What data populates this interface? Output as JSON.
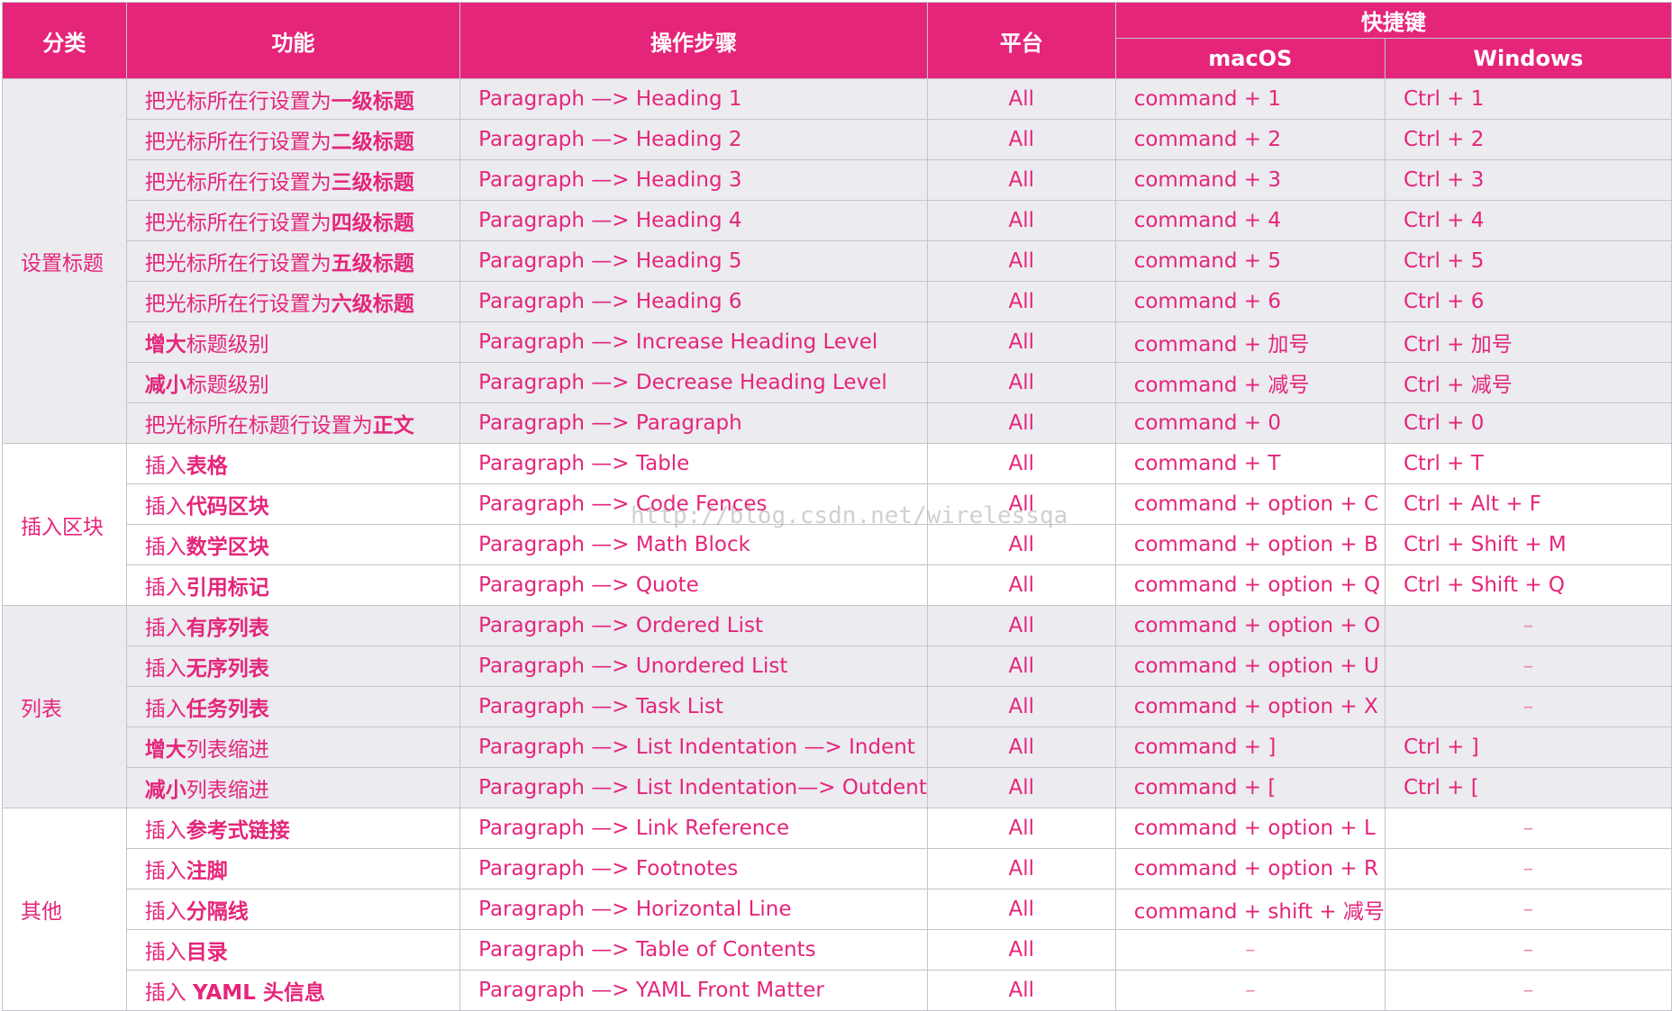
{
  "headers": {
    "category": "分类",
    "function": "功能",
    "steps": "操作步骤",
    "platform": "平台",
    "shortcut": "快捷键",
    "macos": "macOS",
    "windows": "Windows"
  },
  "watermark": "http://blog.csdn.net/wirelessqa",
  "groups": [
    {
      "category": "设置标题",
      "rows": [
        {
          "f_pre": "把光标所在行设置为",
          "f_bold": "一级标题",
          "f_post": "",
          "steps": "Paragraph —> Heading 1",
          "platform": "All",
          "mac": "command + 1",
          "win": "Ctrl + 1"
        },
        {
          "f_pre": "把光标所在行设置为",
          "f_bold": "二级标题",
          "f_post": "",
          "steps": "Paragraph —> Heading 2",
          "platform": "All",
          "mac": "command + 2",
          "win": "Ctrl + 2"
        },
        {
          "f_pre": "把光标所在行设置为",
          "f_bold": "三级标题",
          "f_post": "",
          "steps": "Paragraph —> Heading 3",
          "platform": "All",
          "mac": "command + 3",
          "win": "Ctrl + 3"
        },
        {
          "f_pre": "把光标所在行设置为",
          "f_bold": "四级标题",
          "f_post": "",
          "steps": "Paragraph —> Heading 4",
          "platform": "All",
          "mac": "command + 4",
          "win": "Ctrl + 4"
        },
        {
          "f_pre": "把光标所在行设置为",
          "f_bold": "五级标题",
          "f_post": "",
          "steps": "Paragraph —> Heading 5",
          "platform": "All",
          "mac": "command + 5",
          "win": "Ctrl + 5"
        },
        {
          "f_pre": "把光标所在行设置为",
          "f_bold": "六级标题",
          "f_post": "",
          "steps": "Paragraph —> Heading 6",
          "platform": "All",
          "mac": "command + 6",
          "win": "Ctrl + 6"
        },
        {
          "f_pre": "",
          "f_bold": "增大",
          "f_post": "标题级别",
          "steps": "Paragraph —> Increase Heading Level",
          "platform": "All",
          "mac": "command + 加号",
          "win": "Ctrl + 加号"
        },
        {
          "f_pre": "",
          "f_bold": "减小",
          "f_post": "标题级别",
          "steps": "Paragraph —> Decrease Heading Level",
          "platform": "All",
          "mac": "command + 减号",
          "win": "Ctrl + 减号"
        },
        {
          "f_pre": "把光标所在标题行设置为",
          "f_bold": "正文",
          "f_post": "",
          "steps": "Paragraph —> Paragraph",
          "platform": "All",
          "mac": "command + 0",
          "win": "Ctrl + 0"
        }
      ]
    },
    {
      "category": "插入区块",
      "rows": [
        {
          "f_pre": "插入",
          "f_bold": "表格",
          "f_post": "",
          "steps": "Paragraph —> Table",
          "platform": "All",
          "mac": "command + T",
          "win": "Ctrl + T"
        },
        {
          "f_pre": "插入",
          "f_bold": "代码区块",
          "f_post": "",
          "steps": "Paragraph —> Code Fences",
          "platform": "All",
          "mac": "command + option + C",
          "win": "Ctrl + Alt + F"
        },
        {
          "f_pre": "插入",
          "f_bold": "数学区块",
          "f_post": "",
          "steps": "Paragraph —> Math Block",
          "platform": "All",
          "mac": "command + option + B",
          "win": "Ctrl + Shift + M"
        },
        {
          "f_pre": "插入",
          "f_bold": "引用标记",
          "f_post": "",
          "steps": "Paragraph —> Quote",
          "platform": "All",
          "mac": "command + option + Q",
          "win": "Ctrl + Shift + Q"
        }
      ]
    },
    {
      "category": "列表",
      "rows": [
        {
          "f_pre": "插入",
          "f_bold": "有序列表",
          "f_post": "",
          "steps": "Paragraph —> Ordered List",
          "platform": "All",
          "mac": "command + option + O",
          "win": "–"
        },
        {
          "f_pre": "插入",
          "f_bold": "无序列表",
          "f_post": "",
          "steps": "Paragraph —> Unordered List",
          "platform": "All",
          "mac": "command + option + U",
          "win": "–"
        },
        {
          "f_pre": "插入",
          "f_bold": "任务列表",
          "f_post": "",
          "steps": "Paragraph —> Task List",
          "platform": "All",
          "mac": "command + option + X",
          "win": "–"
        },
        {
          "f_pre": "",
          "f_bold": "增大",
          "f_post": "列表缩进",
          "steps": "Paragraph —> List Indentation —> Indent",
          "platform": "All",
          "mac": "command + ]",
          "win": "Ctrl + ]"
        },
        {
          "f_pre": "",
          "f_bold": "减小",
          "f_post": "列表缩进",
          "steps": "Paragraph —> List Indentation—> Outdent",
          "platform": "All",
          "mac": "command + [",
          "win": "Ctrl + ["
        }
      ]
    },
    {
      "category": "其他",
      "rows": [
        {
          "f_pre": "插入",
          "f_bold": "参考式链接",
          "f_post": "",
          "steps": "Paragraph —> Link Reference",
          "platform": "All",
          "mac": "command + option + L",
          "win": "–"
        },
        {
          "f_pre": "插入",
          "f_bold": "注脚",
          "f_post": "",
          "steps": "Paragraph —> Footnotes",
          "platform": "All",
          "mac": "command + option + R",
          "win": "–"
        },
        {
          "f_pre": "插入",
          "f_bold": "分隔线",
          "f_post": "",
          "steps": "Paragraph —> Horizontal Line",
          "platform": "All",
          "mac": "command + shift + 减号",
          "win": "–"
        },
        {
          "f_pre": "插入",
          "f_bold": "目录",
          "f_post": "",
          "steps": "Paragraph —> Table of Contents",
          "platform": "All",
          "mac": "–",
          "win": "–"
        },
        {
          "f_pre": "插入 ",
          "f_bold": "YAML 头信息",
          "f_post": "",
          "steps": "Paragraph —> YAML Front Matter",
          "platform": "All",
          "mac": "–",
          "win": "–"
        }
      ]
    }
  ]
}
